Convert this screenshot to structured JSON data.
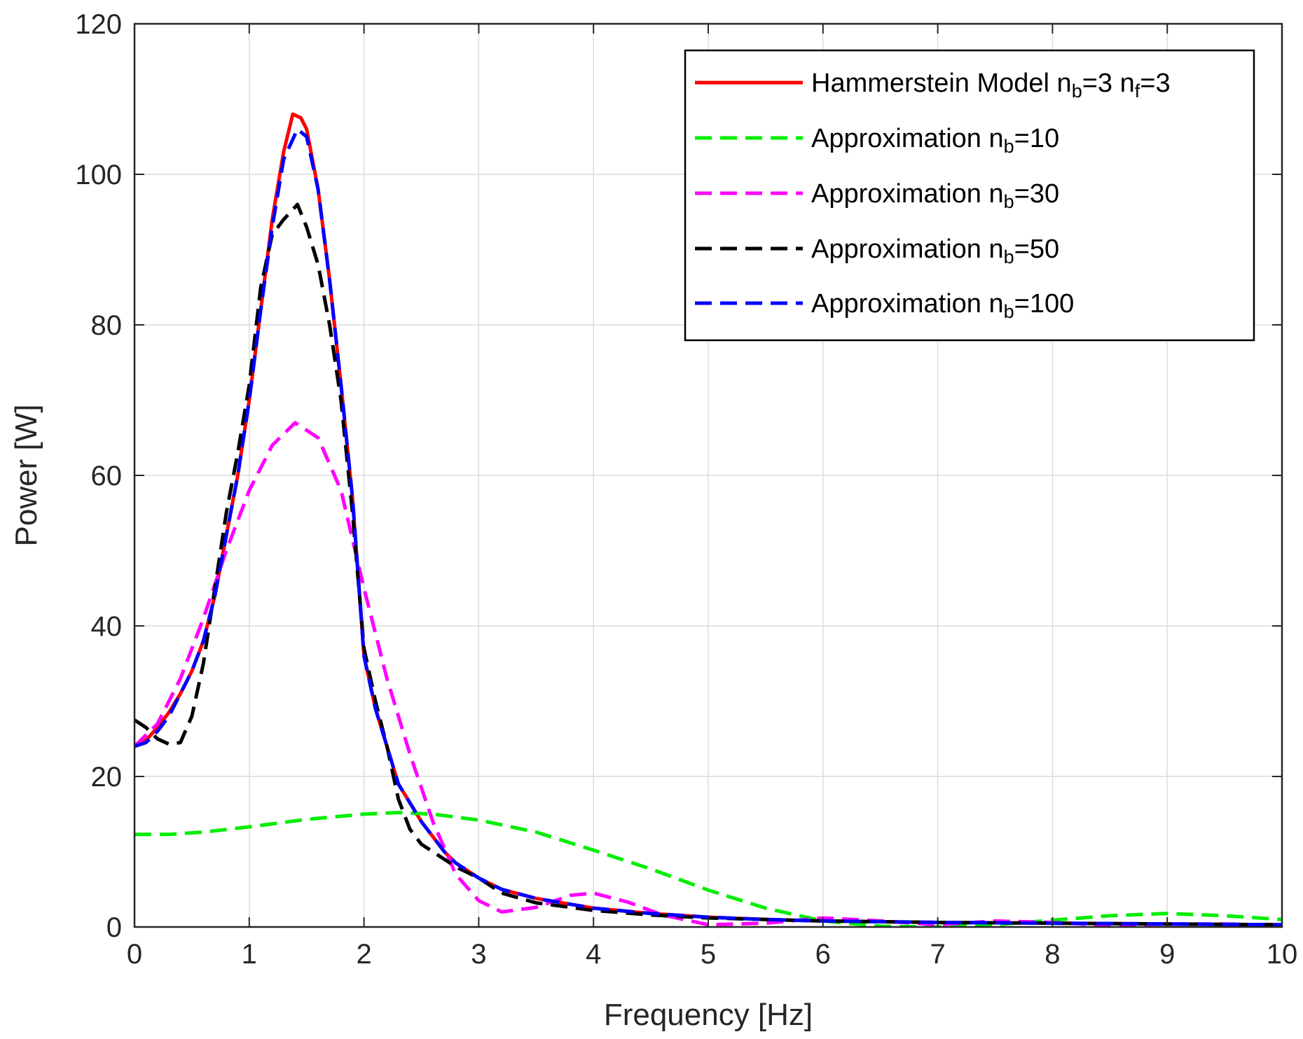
{
  "chart_data": {
    "type": "line",
    "xlabel": "Frequency [Hz]",
    "ylabel": "Power [W]",
    "xlim": [
      0,
      10
    ],
    "ylim": [
      0,
      120
    ],
    "xticks": [
      0,
      1,
      2,
      3,
      4,
      5,
      6,
      7,
      8,
      9,
      10
    ],
    "yticks": [
      0,
      20,
      40,
      60,
      80,
      100,
      120
    ],
    "grid": true,
    "legend_position": "top-right",
    "series": [
      {
        "name": "Hammerstein Model n_b=3 n_f=3",
        "label_parts": [
          {
            "t": "Hammerstein Model n"
          },
          {
            "t": "b",
            "sub": true
          },
          {
            "t": "=3 n"
          },
          {
            "t": "f",
            "sub": true
          },
          {
            "t": "=3"
          }
        ],
        "color": "#ff0000",
        "style": "solid",
        "x": [
          0,
          0.1,
          0.2,
          0.3,
          0.4,
          0.5,
          0.6,
          0.7,
          0.8,
          0.9,
          1.0,
          1.1,
          1.2,
          1.3,
          1.38,
          1.45,
          1.5,
          1.6,
          1.7,
          1.8,
          1.9,
          2.0,
          2.1,
          2.2,
          2.3,
          2.4,
          2.5,
          2.6,
          2.7,
          2.8,
          3.0,
          3.2,
          3.5,
          4.0,
          4.5,
          5.0,
          5.5,
          6.0,
          7.0,
          8.0,
          9.0,
          10.0
        ],
        "y": [
          24,
          24.8,
          26.5,
          28.5,
          31,
          34,
          38,
          44,
          52,
          60,
          70,
          82,
          94,
          103,
          108,
          107.5,
          106,
          98,
          86,
          72,
          57,
          36,
          29,
          24,
          19,
          16.5,
          14,
          12,
          10,
          8.5,
          6.5,
          5,
          3.8,
          2.5,
          1.8,
          1.3,
          1,
          0.8,
          0.6,
          0.5,
          0.4,
          0.3
        ]
      },
      {
        "name": "Approximation n_b=10",
        "label_parts": [
          {
            "t": "Approximation n"
          },
          {
            "t": "b",
            "sub": true
          },
          {
            "t": "=10"
          }
        ],
        "color": "#00ee00",
        "style": "dashed",
        "x": [
          0,
          0.3,
          0.6,
          1.0,
          1.5,
          2.0,
          2.3,
          2.6,
          3.0,
          3.5,
          4.0,
          4.5,
          5.0,
          5.5,
          6.0,
          6.5,
          7.0,
          7.5,
          8.0,
          8.5,
          9.0,
          9.5,
          10.0
        ],
        "y": [
          12.3,
          12.3,
          12.6,
          13.3,
          14.3,
          15.0,
          15.2,
          15.0,
          14.2,
          12.6,
          10.2,
          7.7,
          4.9,
          2.5,
          0.8,
          0.1,
          0,
          0.3,
          0.9,
          1.5,
          1.8,
          1.5,
          1.0
        ]
      },
      {
        "name": "Approximation n_b=30",
        "label_parts": [
          {
            "t": "Approximation n"
          },
          {
            "t": "b",
            "sub": true
          },
          {
            "t": "=30"
          }
        ],
        "color": "#ff00ff",
        "style": "dashed",
        "x": [
          0,
          0.2,
          0.4,
          0.6,
          0.8,
          1.0,
          1.2,
          1.4,
          1.6,
          1.8,
          2.0,
          2.2,
          2.4,
          2.6,
          2.8,
          3.0,
          3.2,
          3.5,
          3.8,
          4.0,
          4.3,
          4.6,
          5.0,
          5.5,
          6.0,
          6.5,
          7.0,
          7.5,
          8.0,
          8.5,
          9.0,
          9.5,
          10.0
        ],
        "y": [
          24,
          27,
          33,
          41,
          50,
          58,
          64,
          67,
          65,
          58,
          45,
          33,
          23,
          14,
          7,
          3.5,
          2,
          2.6,
          4.2,
          4.5,
          3.3,
          1.6,
          0.3,
          0.5,
          1.2,
          0.8,
          0.3,
          0.8,
          0.6,
          0.2,
          0.4,
          0.4,
          0.2
        ]
      },
      {
        "name": "Approximation n_b=50",
        "label_parts": [
          {
            "t": "Approximation n"
          },
          {
            "t": "b",
            "sub": true
          },
          {
            "t": "=50"
          }
        ],
        "color": "#000000",
        "style": "dashed",
        "x": [
          0,
          0.1,
          0.2,
          0.3,
          0.4,
          0.5,
          0.6,
          0.7,
          0.8,
          0.9,
          1.0,
          1.1,
          1.2,
          1.3,
          1.42,
          1.5,
          1.6,
          1.7,
          1.8,
          1.9,
          2.0,
          2.1,
          2.2,
          2.3,
          2.4,
          2.5,
          2.6,
          2.7,
          2.8,
          3.0,
          3.2,
          3.5,
          4.0,
          4.5,
          5.0,
          5.5,
          6.0,
          7.0,
          8.0,
          9.0,
          10.0
        ],
        "y": [
          27.5,
          26.5,
          25,
          24.3,
          24.5,
          28,
          35,
          45,
          55,
          63,
          72,
          85,
          92,
          94,
          96,
          93,
          88,
          80,
          70,
          55,
          37,
          30,
          24,
          17,
          13,
          11,
          10,
          9,
          8,
          6.5,
          4.5,
          3.2,
          2.2,
          1.6,
          1.2,
          1.0,
          0.8,
          0.6,
          0.5,
          0.4,
          0.3
        ]
      },
      {
        "name": "Approximation n_b=100",
        "label_parts": [
          {
            "t": "Approximation n"
          },
          {
            "t": "b",
            "sub": true
          },
          {
            "t": "=100"
          }
        ],
        "color": "#0000ff",
        "style": "dashed",
        "x": [
          0,
          0.1,
          0.2,
          0.3,
          0.4,
          0.5,
          0.6,
          0.7,
          0.8,
          0.9,
          1.0,
          1.1,
          1.2,
          1.3,
          1.42,
          1.5,
          1.6,
          1.7,
          1.8,
          1.9,
          2.0,
          2.1,
          2.2,
          2.3,
          2.4,
          2.5,
          2.6,
          2.7,
          2.8,
          3.0,
          3.2,
          3.5,
          4.0,
          4.5,
          5.0,
          5.5,
          6.0,
          7.0,
          8.0,
          9.0,
          10.0
        ],
        "y": [
          24,
          24.5,
          26,
          28,
          31,
          34,
          38,
          44,
          52,
          60,
          70,
          82,
          93,
          102,
          106,
          105,
          98,
          86,
          72,
          57,
          36,
          29,
          24,
          19,
          16.5,
          14,
          12,
          10,
          8.5,
          6.5,
          5,
          3.8,
          2.5,
          1.8,
          1.3,
          1,
          0.8,
          0.6,
          0.5,
          0.4,
          0.3
        ]
      }
    ]
  }
}
